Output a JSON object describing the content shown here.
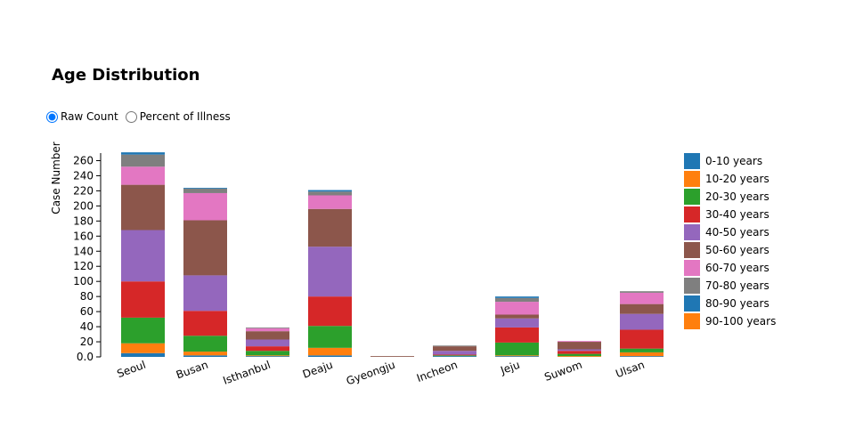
{
  "title": "Age Distribution",
  "controls": {
    "raw_label": "Raw Count",
    "percent_label": "Percent of Illness",
    "selected": "raw"
  },
  "chart_data": {
    "type": "bar",
    "stacked": true,
    "title": "Age Distribution",
    "xlabel": "",
    "ylabel": "Case Number",
    "ylim": [
      0,
      270
    ],
    "yticks": [
      0,
      20,
      40,
      60,
      80,
      100,
      120,
      140,
      160,
      180,
      200,
      220,
      240,
      260
    ],
    "categories": [
      "Seoul",
      "Busan",
      "Isthanbul",
      "Deaju",
      "Gyeongju",
      "Incheon",
      "Jeju",
      "Suwom",
      "Ulsan"
    ],
    "series": [
      {
        "name": "0-10 years",
        "color": "#1f77b4",
        "values": [
          5,
          2,
          1,
          2,
          0,
          1,
          1,
          0,
          1
        ]
      },
      {
        "name": "10-20 years",
        "color": "#ff7f0e",
        "values": [
          13,
          5,
          1,
          10,
          0,
          0,
          1,
          1,
          5
        ]
      },
      {
        "name": "20-30 years",
        "color": "#2ca02c",
        "values": [
          34,
          21,
          6,
          29,
          0,
          1,
          17,
          3,
          5
        ]
      },
      {
        "name": "30-40 years",
        "color": "#d62728",
        "values": [
          48,
          33,
          6,
          39,
          0,
          1,
          20,
          4,
          25
        ]
      },
      {
        "name": "40-50 years",
        "color": "#9467bd",
        "values": [
          68,
          47,
          9,
          66,
          0,
          5,
          12,
          2,
          21
        ]
      },
      {
        "name": "50-60 years",
        "color": "#8c564b",
        "values": [
          60,
          73,
          11,
          50,
          1,
          6,
          5,
          10,
          13
        ]
      },
      {
        "name": "60-70 years",
        "color": "#e377c2",
        "values": [
          24,
          36,
          4,
          18,
          0,
          0,
          17,
          1,
          15
        ]
      },
      {
        "name": "70-80 years",
        "color": "#7f7f7f",
        "values": [
          16,
          6,
          1,
          5,
          0,
          1,
          5,
          0,
          2
        ]
      },
      {
        "name": "80-90 years",
        "color": "#1f77b4",
        "values": [
          3,
          1,
          0,
          2,
          0,
          0,
          2,
          0,
          0
        ]
      },
      {
        "name": "90-100 years",
        "color": "#ff7f0e",
        "values": [
          0,
          0,
          0,
          0,
          0,
          0,
          0,
          0,
          0
        ]
      }
    ],
    "legend_position": "right",
    "grid": false
  }
}
